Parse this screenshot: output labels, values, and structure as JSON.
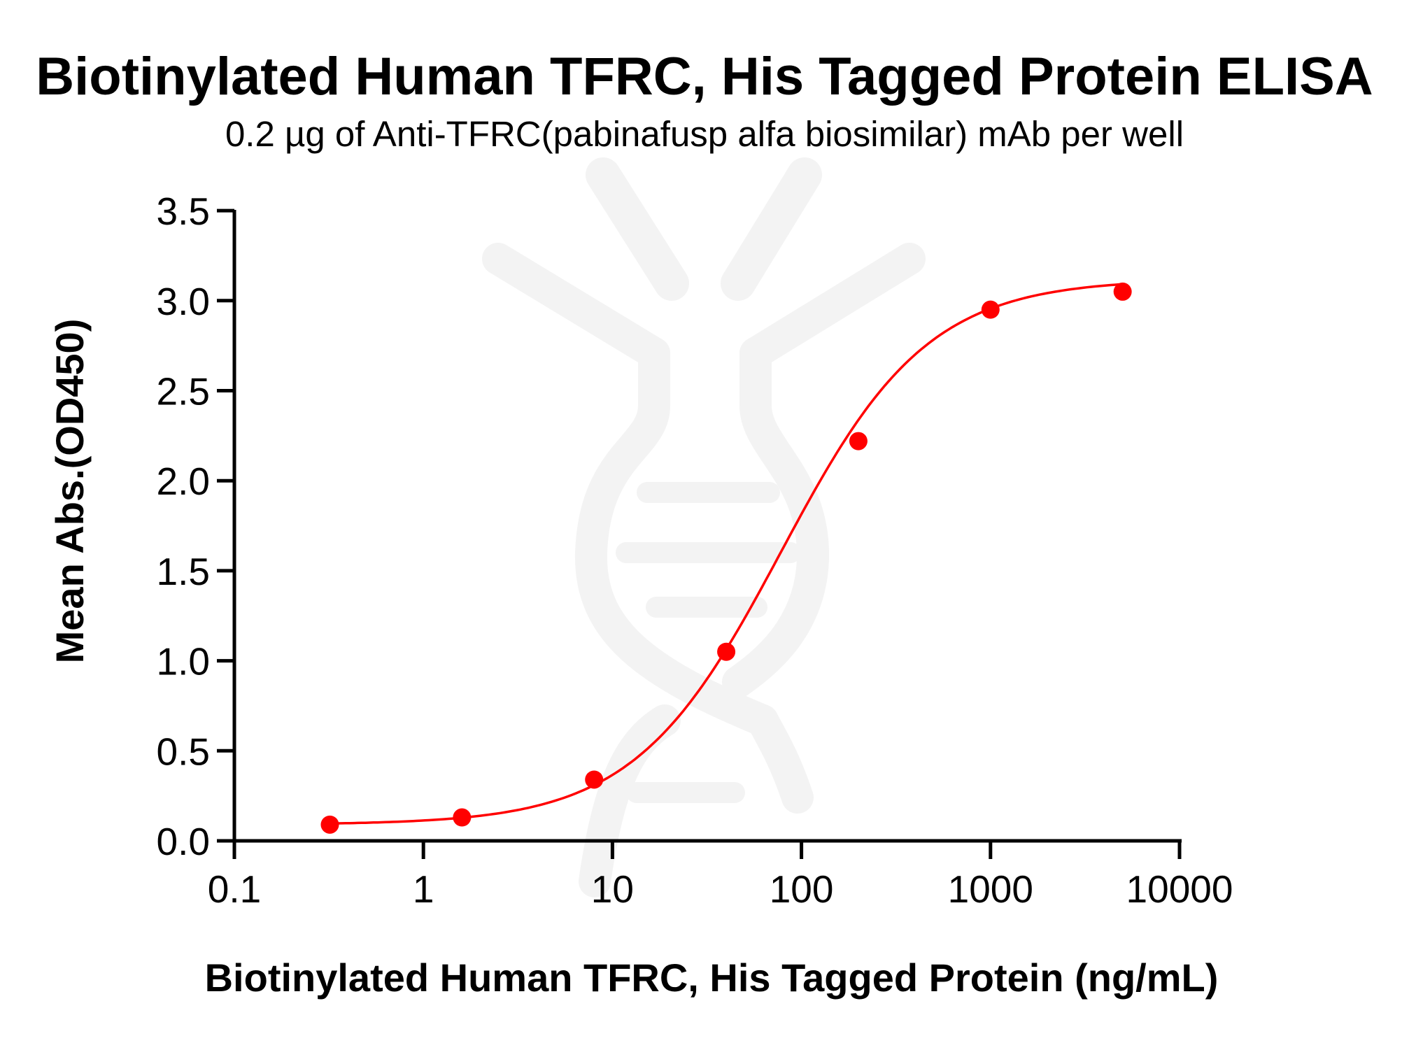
{
  "chart_data": {
    "type": "scatter",
    "title": "Biotinylated Human TFRC, His Tagged Protein ELISA",
    "subtitle": "0.2 µg of Anti-TFRC(pabinafusp alfa biosimilar) mAb per well",
    "xlabel": "Biotinylated Human TFRC, His Tagged Protein (ng/mL)",
    "ylabel": "Mean Abs.(OD450)",
    "xscale": "log",
    "xlim": [
      0.1,
      10000
    ],
    "ylim": [
      0,
      3.5
    ],
    "x_ticks": [
      "0.1",
      "1",
      "10",
      "100",
      "1000",
      "10000"
    ],
    "y_ticks": [
      "0.0",
      "0.5",
      "1.0",
      "1.5",
      "2.0",
      "2.5",
      "3.0",
      "3.5"
    ],
    "grid": false,
    "legend": null,
    "series": [
      {
        "name": "Anti-TFRC(pabinafusp alfa biosimilar) mAb",
        "x": [
          0.32,
          1.6,
          8,
          40,
          200,
          1000,
          5000
        ],
        "y": [
          0.09,
          0.13,
          0.34,
          1.05,
          2.22,
          2.95,
          3.05
        ],
        "color": "#ff0000",
        "marker": "circle",
        "fit": "4PL sigmoidal curve",
        "fit_params": {
          "bottom": 0.09,
          "top": 3.12,
          "ec50": 78,
          "hill": 1.12
        }
      }
    ]
  },
  "colors": {
    "series": "#ff0000",
    "axis": "#000000",
    "watermark": "#f3f3f3"
  },
  "watermark": {
    "icon": "dna-antibody-logo-icon"
  }
}
